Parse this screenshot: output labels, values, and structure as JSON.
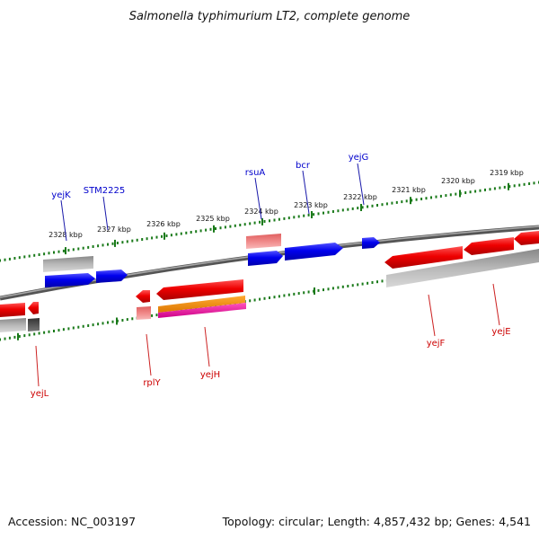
{
  "title": "Salmonella typhimurium LT2, complete genome",
  "footer": {
    "accession": "Accession: NC_003197",
    "summary": "Topology: circular; Length: 4,857,432 bp; Genes: 4,541"
  },
  "colors": {
    "forward_gene": "#0000ee",
    "reverse_gene": "#ee0000",
    "rna_gene": "#ff8800",
    "backbone": "#777777",
    "ruler": "#1a7a1a"
  },
  "ruler": {
    "ticks": [
      "2328 kbp",
      "2327 kbp",
      "2326 kbp",
      "2325 kbp",
      "2324 kbp",
      "2323 kbp",
      "2322 kbp",
      "2321 kbp",
      "2320 kbp",
      "2319 kbp"
    ]
  },
  "forward_labels": [
    "yejK",
    "STM2225",
    "rsuA",
    "bcr",
    "yejG"
  ],
  "reverse_labels": [
    "yejL",
    "rplY",
    "yejH",
    "yejF",
    "yejE"
  ]
}
